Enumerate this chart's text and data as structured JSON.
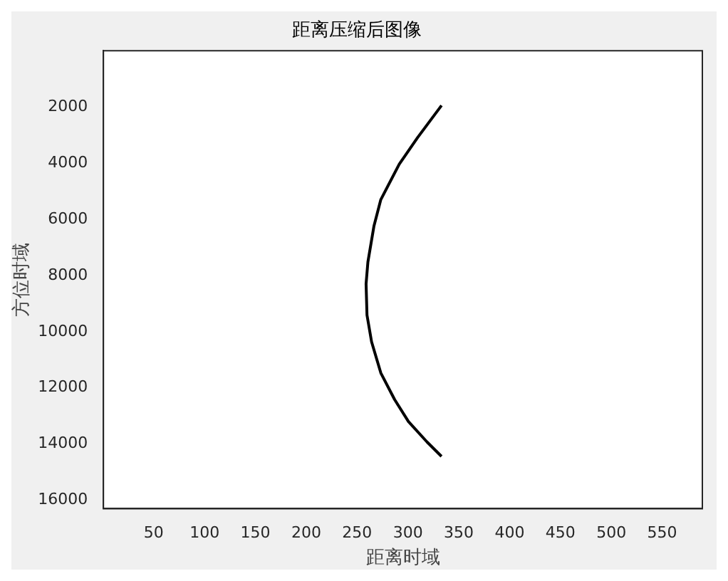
{
  "chart_data": {
    "type": "line",
    "title": "距离压缩后图像",
    "xlabel": "距离时域",
    "ylabel": "方位时域",
    "series": [
      {
        "color": "#000000",
        "x": [
          333,
          309.5,
          291.4,
          273.3,
          266.5,
          260.6,
          258.8,
          259.7,
          264.2,
          273.3,
          286.9,
          300.5,
          318.6,
          333
        ],
        "values": [
          1950,
          3090,
          4040,
          5300,
          6250,
          7520,
          8300,
          9410,
          10360,
          11470,
          12420,
          13200,
          13920,
          14440
        ]
      }
    ],
    "xlim": [
      0.5,
      589.5
    ],
    "ylim": [
      16300,
      0.5
    ],
    "xticks": [
      50,
      100,
      150,
      200,
      250,
      300,
      350,
      400,
      450,
      500,
      550
    ],
    "yticks": [
      2000,
      4000,
      6000,
      8000,
      10000,
      12000,
      14000,
      16000
    ],
    "grid": false,
    "legend": false,
    "marker": "none",
    "line_style": "solid"
  }
}
